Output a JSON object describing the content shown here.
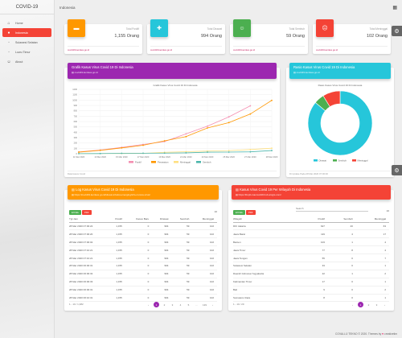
{
  "brand": "COVID-19",
  "topbar": {
    "title": "Indonesia"
  },
  "nav": [
    {
      "label": "Home",
      "icon": "home-icon",
      "glyph": "⌂"
    },
    {
      "label": "Indonesia",
      "icon": "location-icon",
      "glyph": "●"
    },
    {
      "label": "Sulawesi Selatan",
      "icon": "location-icon",
      "glyph": "◦"
    },
    {
      "label": "Luwu Timur",
      "icon": "location-icon",
      "glyph": "◦"
    },
    {
      "label": "About",
      "icon": "person-icon",
      "glyph": "☺"
    }
  ],
  "stats": [
    {
      "label": "Total Positif",
      "value": "1,155 Orang",
      "color": "#ff9800",
      "icon": "ambulance-icon",
      "glyph": "▬",
      "footer": "covid19.kemkes.go.id"
    },
    {
      "label": "Total Dirawat",
      "value": "994 Orang",
      "color": "#26c6da",
      "icon": "hospital-icon",
      "glyph": "✚",
      "footer": "covid19.kemkes.go.id"
    },
    {
      "label": "Total Sembuh",
      "value": "59 Orang",
      "color": "#4caf50",
      "icon": "smile-icon",
      "glyph": "☺",
      "footer": "covid19.kemkes.go.id"
    },
    {
      "label": "Total Meninggal",
      "value": "102 Orang",
      "color": "#f44336",
      "icon": "sad-icon",
      "glyph": "☹",
      "footer": "covid19.kemkes.go.id"
    }
  ],
  "graph_card": {
    "title": "Grafik Kasus Virus Covid 19 Di Indonesia",
    "subtitle": "covid19.kemkes.go.id",
    "footer": "Data kasus Covid",
    "header_color": "#9c27b0"
  },
  "ratio_card": {
    "title": "Rasio Kasus Virus Covid 19 Di Indonesia",
    "subtitle": "covid19.kemkes.go.id",
    "footer": "Di Update Pada 28 Mar 2020 07:00:00",
    "header_color": "#26c6da"
  },
  "chart_data": [
    {
      "type": "line",
      "title": "Grafik Kasus Virus Covid 19 Di Indonesia",
      "x": [
        "11 Mar 2020",
        "13 Mar 2020",
        "15 Mar 2020",
        "17 Mar 2020",
        "19 Mar 2020",
        "21 Mar 2020",
        "23 Mar 2020",
        "25 Mar 2020",
        "27 Mar 2020",
        "28 Mar 2020"
      ],
      "ylim": [
        0,
        1200
      ],
      "yticks": [
        0,
        100,
        200,
        300,
        400,
        500,
        600,
        700,
        800,
        900,
        1000,
        1100,
        1200
      ],
      "series": [
        {
          "name": "Positif",
          "color": "#f48fb1",
          "values": [
            34,
            69,
            117,
            172,
            227,
            369,
            514,
            686,
            893,
            null
          ]
        },
        {
          "name": "Perawatan",
          "color": "#ff9800",
          "values": [
            29,
            63,
            108,
            157,
            240,
            318,
            480,
            579,
            740,
            994
          ]
        },
        {
          "name": "Meninggal",
          "color": "#ffe082",
          "values": [
            2,
            4,
            5,
            7,
            25,
            38,
            49,
            58,
            78,
            102
          ]
        },
        {
          "name": "Sembuh",
          "color": "#4db6ac",
          "values": [
            2,
            3,
            8,
            9,
            11,
            16,
            29,
            30,
            35,
            59
          ]
        }
      ]
    },
    {
      "type": "pie",
      "title": "Rasio Kasus Virus Covid 19 Di Indonesia",
      "categories": [
        "Dirawat",
        "Sembuh",
        "Meninggal"
      ],
      "values": [
        994,
        59,
        102
      ],
      "colors": [
        "#26c6da",
        "#4caf50",
        "#f44336"
      ]
    }
  ],
  "log_table": {
    "title": "Log Kasus Virus Covid 19 Di Indonesia",
    "subtitle": "https://covid19.kemkes.go.id/situasi-infeksi-emerging/info-corona-virus/",
    "header_color": "#ff9800",
    "btn_csv": "EXCEL",
    "btn_pdf": "PDF",
    "length": "10",
    "columns": [
      "Tgl Jam",
      "Positif",
      "Kasus Baru",
      "Dirawat",
      "Sembuh",
      "Meninggal"
    ],
    "rows": [
      [
        "28 Mar 2020 07:00:22",
        "1,155",
        "0",
        "994",
        "59",
        "102"
      ],
      [
        "28 Mar 2020 07:00:20",
        "1,155",
        "0",
        "994",
        "59",
        "102"
      ],
      [
        "28 Mar 2020 07:00:02",
        "1,155",
        "0",
        "994",
        "59",
        "102"
      ],
      [
        "28 Mar 2020 07:10:21",
        "1,155",
        "0",
        "994",
        "59",
        "102"
      ],
      [
        "28 Mar 2020 07:10:21",
        "1,155",
        "0",
        "994",
        "59",
        "102"
      ],
      [
        "28 Mar 2020 06:00:31",
        "1,155",
        "0",
        "994",
        "59",
        "102"
      ],
      [
        "28 Mar 2020 06:00:32",
        "1,155",
        "0",
        "994",
        "59",
        "102"
      ],
      [
        "28 Mar 2020 06:00:33",
        "1,155",
        "0",
        "994",
        "59",
        "102"
      ],
      [
        "28 Mar 2020 06:00:31",
        "1,155",
        "0",
        "994",
        "59",
        "102"
      ],
      [
        "28 Mar 2020 06:10:31",
        "1,155",
        "0",
        "994",
        "59",
        "102"
      ]
    ],
    "info": "1 - 10 / 1,382",
    "pages": [
      "‹",
      "1",
      "2",
      "3",
      "4",
      "5",
      "…",
      "139",
      "›"
    ]
  },
  "province_table": {
    "title": "Kasus Virus Covid 19 Per Wilayah Di Indonesia",
    "subtitle": "https://bnpb-inacovid19.hub.arcgis.com/",
    "header_color": "#f44336",
    "btn_csv": "EXCEL",
    "btn_pdf": "PDF",
    "search_placeholder": "Search",
    "length": "10",
    "columns": [
      "Wilayah",
      "Positif",
      "Sembuh",
      "Meninggal"
    ],
    "rows": [
      [
        "DKI Jakarta",
        "627",
        "40",
        "63"
      ],
      [
        "Jawa Barat",
        "119",
        "4",
        "17"
      ],
      [
        "Banten",
        "103",
        "1",
        "4"
      ],
      [
        "Jawa Timur",
        "77",
        "8",
        "4"
      ],
      [
        "Jawa Tengan",
        "55",
        "0",
        "7"
      ],
      [
        "Sulawesi Selatan",
        "33",
        "0",
        "1"
      ],
      [
        "Daerah Istimewa Yogyakarta",
        "22",
        "1",
        "2"
      ],
      [
        "Kalimantan Timur",
        "17",
        "0",
        "1"
      ],
      [
        "Bali",
        "9",
        "0",
        "2"
      ],
      [
        "Sumatera Utara",
        "8",
        "0",
        "1"
      ]
    ],
    "info": "1 - 10 / 29",
    "pages": [
      "‹",
      "1",
      "2",
      "3",
      "›"
    ]
  },
  "footer": {
    "text": "COVALLIJ TEKNO © 2020. Themes by",
    "heart": "♥",
    "by": "creativetim"
  }
}
